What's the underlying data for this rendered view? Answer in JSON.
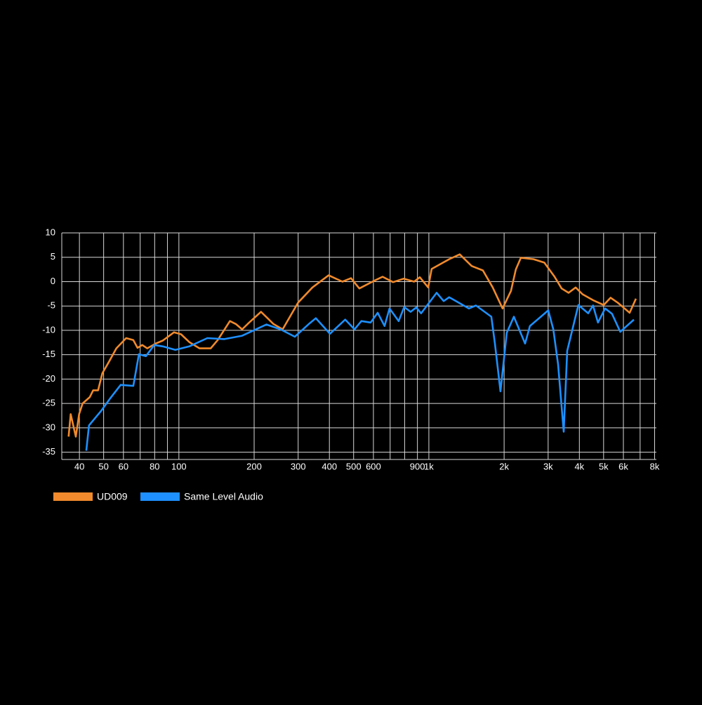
{
  "chart_data": {
    "type": "line",
    "log_x": true,
    "grid": true,
    "xlim": [
      34,
      8130
    ],
    "ylim": [
      -36.5,
      10
    ],
    "yticks": [
      10,
      5,
      0,
      -5,
      -10,
      -15,
      -20,
      -25,
      -30,
      -35
    ],
    "xticks": [
      40,
      50,
      60,
      80,
      100,
      200,
      300,
      400,
      500,
      600,
      900,
      {
        "value": 1000,
        "label": "1k"
      },
      {
        "value": 2000,
        "label": "2k"
      },
      {
        "value": 3000,
        "label": "3k"
      },
      {
        "value": 4000,
        "label": "4k"
      },
      {
        "value": 5000,
        "label": "5k"
      },
      {
        "value": 6000,
        "label": "6k"
      },
      {
        "value": 8000,
        "label": "8k"
      }
    ],
    "xgrid": [
      70,
      90,
      700,
      800,
      7000
    ],
    "series": [
      {
        "name": "UD009",
        "color": "#f08a2c",
        "x": [
          36.2,
          36.9,
          38.7,
          39.9,
          41.2,
          44.0,
          45.4,
          47.5,
          49.4,
          52.7,
          56.2,
          61.5,
          65.7,
          68.3,
          71.4,
          74.7,
          80.8,
          86.2,
          95.6,
          102,
          110,
          121,
          134,
          143,
          160,
          169,
          179,
          191,
          213,
          239,
          260,
          300,
          342,
          397,
          451,
          488,
          527,
          611,
          653,
          719,
          792,
          873,
          920,
          994,
          1026,
          1206,
          1329,
          1483,
          1645,
          1801,
          1972,
          2131,
          2228,
          2334,
          2622,
          2897,
          3184,
          3396,
          3620,
          3864,
          4120,
          4537,
          5005,
          5334,
          5687,
          6069,
          6353,
          6737
        ],
        "values": [
          -31.8,
          -27.2,
          -31.8,
          -27.2,
          -25.0,
          -23.7,
          -22.3,
          -22.3,
          -18.8,
          -16.3,
          -13.7,
          -11.6,
          -12.0,
          -13.6,
          -13.0,
          -13.7,
          -12.7,
          -12.1,
          -10.4,
          -10.8,
          -12.4,
          -13.7,
          -13.7,
          -12.0,
          -8.1,
          -8.7,
          -9.8,
          -8.4,
          -6.2,
          -8.7,
          -9.8,
          -4.3,
          -1.2,
          1.3,
          0,
          0.7,
          -1.4,
          0.3,
          1.0,
          -0.1,
          0.6,
          0,
          0.9,
          -1.2,
          2.6,
          4.6,
          5.6,
          3.2,
          2.3,
          -1.2,
          -5.5,
          -1.9,
          2.5,
          4.9,
          4.6,
          3.9,
          1.0,
          -1.4,
          -2.3,
          -1.2,
          -2.6,
          -3.8,
          -4.8,
          -3.3,
          -4.3,
          -5.5,
          -6.4,
          -3.5
        ]
      },
      {
        "name": "Same Level Audio",
        "color": "#1e90ff",
        "x": [
          42.6,
          43.7,
          49.1,
          53.4,
          58.5,
          65.7,
          69.2,
          73.8,
          79.7,
          86.2,
          96.8,
          110,
          130,
          152,
          179,
          224,
          255,
          291,
          331,
          353,
          402,
          463,
          504,
          537,
          585,
          624,
          665,
          696,
          757,
          797,
          845,
          890,
          931,
          1074,
          1146,
          1206,
          1446,
          1543,
          1778,
          1837,
          1934,
          2049,
          2188,
          2427,
          2537,
          2897,
          3004,
          3146,
          3289,
          3463,
          3576,
          3964,
          4340,
          4537,
          4748,
          5071,
          5404,
          5832,
          6610
        ],
        "values": [
          -34.7,
          -29.5,
          -26.4,
          -23.8,
          -21.2,
          -21.4,
          -14.9,
          -15.3,
          -13.0,
          -13.3,
          -14.0,
          -13.3,
          -11.6,
          -11.8,
          -11.1,
          -8.8,
          -9.8,
          -11.3,
          -8.7,
          -7.5,
          -10.7,
          -7.8,
          -9.8,
          -8.1,
          -8.4,
          -6.4,
          -9.1,
          -5.5,
          -8.1,
          -5.2,
          -6.2,
          -5.3,
          -6.5,
          -2.3,
          -4.0,
          -3.2,
          -5.5,
          -4.9,
          -7.2,
          -12.7,
          -22.5,
          -10.5,
          -7.2,
          -12.7,
          -9.1,
          -6.6,
          -5.9,
          -9.8,
          -17.0,
          -30.8,
          -14.2,
          -4.8,
          -6.5,
          -4.9,
          -8.4,
          -5.5,
          -6.6,
          -10.3,
          -7.8
        ]
      }
    ]
  }
}
